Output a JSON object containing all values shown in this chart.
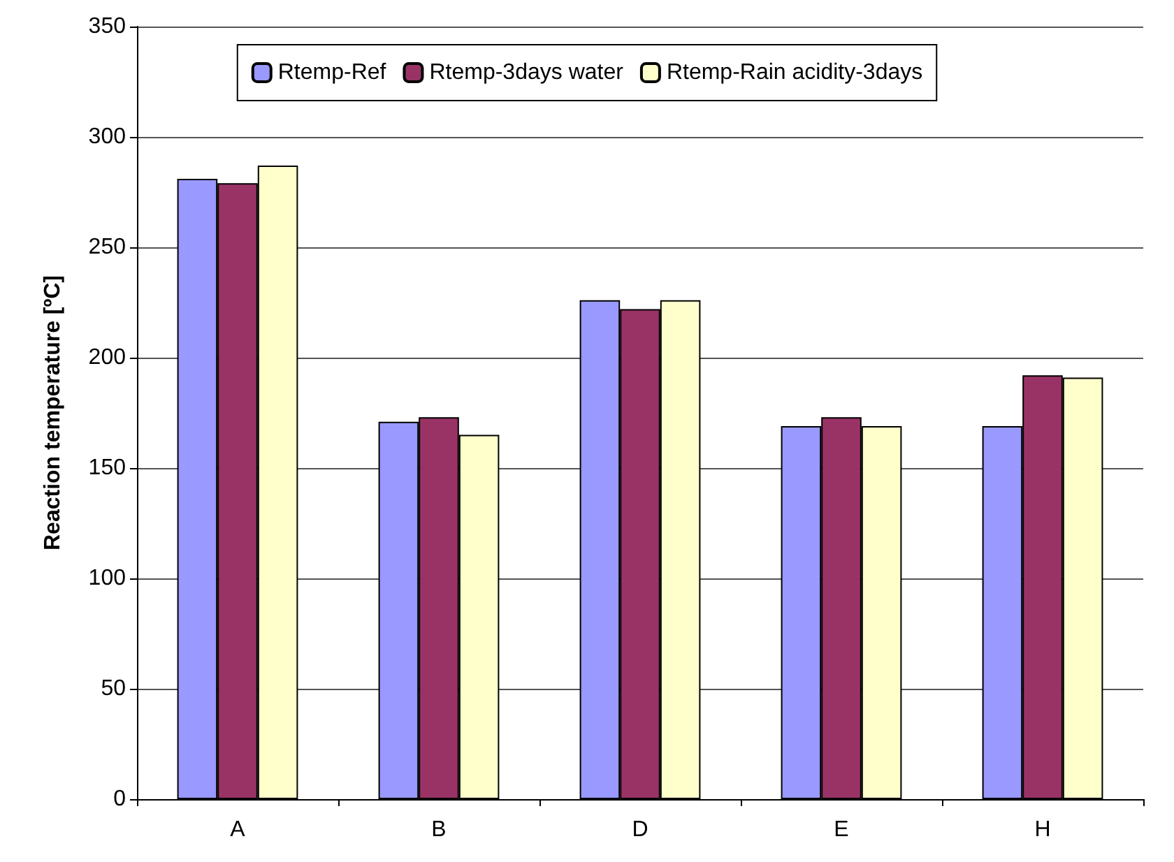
{
  "chart_data": {
    "type": "bar",
    "ylabel": "Reaction temperature [ºC]",
    "categories": [
      "A",
      "B",
      "D",
      "E",
      "H"
    ],
    "series": [
      {
        "name": "Rtemp-Ref",
        "color": "#9999ff",
        "values": [
          281,
          171,
          226,
          169,
          169
        ]
      },
      {
        "name": "Rtemp-3days water",
        "color": "#993366",
        "values": [
          279,
          173,
          222,
          173,
          192
        ]
      },
      {
        "name": "Rtemp-Rain acidity-3days",
        "color": "#ffffcc",
        "values": [
          287,
          165,
          226,
          169,
          191
        ]
      }
    ],
    "ylim": [
      0,
      350
    ],
    "yticks": [
      0,
      50,
      100,
      150,
      200,
      250,
      300,
      350
    ],
    "grid": "y",
    "legend": "top"
  }
}
